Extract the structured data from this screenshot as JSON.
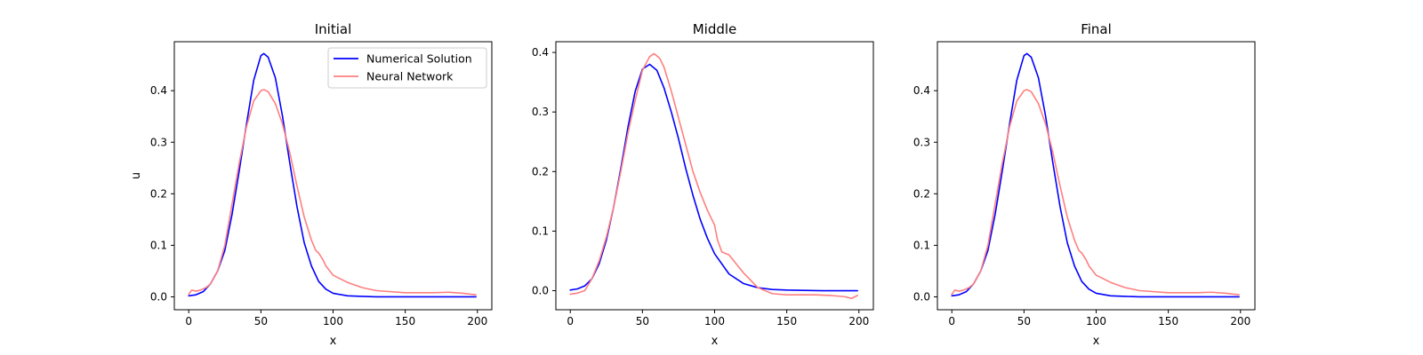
{
  "chart_data": [
    {
      "type": "line",
      "title": "Initial",
      "xlabel": "x",
      "ylabel": "u",
      "xlim": [
        -10,
        210
      ],
      "ylim": [
        -0.025,
        0.495
      ],
      "xticks": [
        0,
        50,
        100,
        150,
        200
      ],
      "yticks": [
        0.0,
        0.1,
        0.2,
        0.3,
        0.4
      ],
      "ytick_labels": [
        "0.0",
        "0.1",
        "0.2",
        "0.3",
        "0.4"
      ],
      "grid": false,
      "legend": "top-right",
      "series": [
        {
          "name": "Numerical Solution",
          "color": "#0000ff",
          "x": [
            0,
            5,
            10,
            15,
            20,
            25,
            30,
            35,
            40,
            45,
            50,
            52,
            55,
            60,
            65,
            70,
            75,
            80,
            85,
            90,
            95,
            100,
            110,
            120,
            130,
            150,
            175,
            199
          ],
          "y": [
            0.002,
            0.004,
            0.01,
            0.025,
            0.05,
            0.09,
            0.16,
            0.245,
            0.335,
            0.42,
            0.468,
            0.472,
            0.465,
            0.425,
            0.35,
            0.26,
            0.175,
            0.105,
            0.06,
            0.03,
            0.015,
            0.007,
            0.002,
            0.001,
            0.0,
            0.0,
            0.0,
            0.0
          ]
        },
        {
          "name": "Neural Network",
          "color": "#ff7f7f",
          "x": [
            0,
            2,
            5,
            8,
            12,
            15,
            20,
            25,
            30,
            35,
            40,
            45,
            50,
            52,
            55,
            60,
            65,
            70,
            75,
            80,
            85,
            88,
            90,
            93,
            95,
            100,
            110,
            120,
            130,
            150,
            170,
            180,
            190,
            199
          ],
          "y": [
            0.005,
            0.013,
            0.011,
            0.013,
            0.018,
            0.025,
            0.05,
            0.1,
            0.18,
            0.26,
            0.33,
            0.38,
            0.4,
            0.402,
            0.398,
            0.375,
            0.335,
            0.28,
            0.215,
            0.155,
            0.11,
            0.09,
            0.085,
            0.072,
            0.06,
            0.042,
            0.028,
            0.018,
            0.012,
            0.008,
            0.008,
            0.009,
            0.007,
            0.004
          ]
        }
      ]
    },
    {
      "type": "line",
      "title": "Middle",
      "xlabel": "x",
      "ylabel": "",
      "xlim": [
        -10,
        210
      ],
      "ylim": [
        -0.032,
        0.418
      ],
      "xticks": [
        0,
        50,
        100,
        150,
        200
      ],
      "yticks": [
        0.0,
        0.1,
        0.2,
        0.3,
        0.4
      ],
      "ytick_labels": [
        "0.0",
        "0.1",
        "0.2",
        "0.3",
        "0.4"
      ],
      "grid": false,
      "series": [
        {
          "name": "Numerical Solution",
          "color": "#0000ff",
          "x": [
            0,
            5,
            10,
            15,
            20,
            25,
            30,
            35,
            40,
            45,
            50,
            55,
            60,
            65,
            70,
            75,
            80,
            85,
            90,
            95,
            100,
            110,
            120,
            130,
            140,
            150,
            175,
            199
          ],
          "y": [
            0.001,
            0.003,
            0.008,
            0.02,
            0.045,
            0.085,
            0.14,
            0.205,
            0.275,
            0.335,
            0.372,
            0.38,
            0.37,
            0.34,
            0.3,
            0.255,
            0.205,
            0.16,
            0.12,
            0.088,
            0.062,
            0.028,
            0.012,
            0.005,
            0.002,
            0.001,
            0.0,
            0.0
          ]
        },
        {
          "name": "Neural Network",
          "color": "#ff7f7f",
          "x": [
            0,
            5,
            10,
            15,
            20,
            25,
            30,
            35,
            40,
            45,
            50,
            55,
            58,
            62,
            65,
            70,
            75,
            80,
            85,
            90,
            95,
            100,
            102,
            105,
            110,
            115,
            120,
            130,
            140,
            150,
            160,
            170,
            180,
            190,
            195,
            199
          ],
          "y": [
            -0.006,
            -0.004,
            0.0,
            0.02,
            0.05,
            0.09,
            0.14,
            0.2,
            0.265,
            0.32,
            0.37,
            0.393,
            0.398,
            0.39,
            0.375,
            0.335,
            0.29,
            0.245,
            0.2,
            0.165,
            0.135,
            0.11,
            0.085,
            0.065,
            0.06,
            0.045,
            0.03,
            0.005,
            -0.005,
            -0.007,
            -0.007,
            -0.007,
            -0.008,
            -0.01,
            -0.013,
            -0.008
          ]
        }
      ]
    },
    {
      "type": "line",
      "title": "Final",
      "xlabel": "x",
      "ylabel": "",
      "xlim": [
        -10,
        210
      ],
      "ylim": [
        -0.025,
        0.495
      ],
      "xticks": [
        0,
        50,
        100,
        150,
        200
      ],
      "yticks": [
        0.0,
        0.1,
        0.2,
        0.3,
        0.4
      ],
      "ytick_labels": [
        "0.0",
        "0.1",
        "0.2",
        "0.3",
        "0.4"
      ],
      "grid": false,
      "series": [
        {
          "name": "Numerical Solution",
          "color": "#0000ff",
          "x": [
            0,
            5,
            10,
            15,
            20,
            25,
            30,
            35,
            40,
            45,
            50,
            52,
            55,
            60,
            65,
            70,
            75,
            80,
            85,
            90,
            95,
            100,
            110,
            120,
            130,
            150,
            175,
            199
          ],
          "y": [
            0.002,
            0.004,
            0.01,
            0.025,
            0.05,
            0.09,
            0.16,
            0.245,
            0.335,
            0.42,
            0.468,
            0.472,
            0.465,
            0.425,
            0.35,
            0.26,
            0.175,
            0.105,
            0.06,
            0.03,
            0.015,
            0.007,
            0.002,
            0.001,
            0.0,
            0.0,
            0.0,
            0.0
          ]
        },
        {
          "name": "Neural Network",
          "color": "#ff7f7f",
          "x": [
            0,
            2,
            5,
            8,
            12,
            15,
            20,
            25,
            30,
            35,
            40,
            45,
            50,
            52,
            55,
            60,
            65,
            70,
            75,
            80,
            85,
            88,
            90,
            93,
            95,
            100,
            110,
            120,
            130,
            150,
            170,
            180,
            190,
            199
          ],
          "y": [
            0.005,
            0.013,
            0.011,
            0.013,
            0.018,
            0.025,
            0.05,
            0.1,
            0.18,
            0.26,
            0.33,
            0.38,
            0.4,
            0.402,
            0.398,
            0.375,
            0.335,
            0.28,
            0.215,
            0.155,
            0.11,
            0.09,
            0.085,
            0.072,
            0.06,
            0.042,
            0.028,
            0.018,
            0.012,
            0.008,
            0.008,
            0.009,
            0.007,
            0.004
          ]
        }
      ]
    }
  ]
}
